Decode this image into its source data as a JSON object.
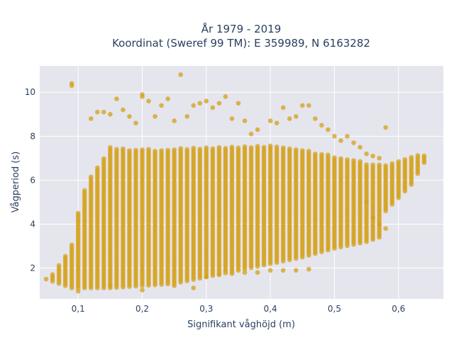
{
  "chart_data": {
    "type": "scatter",
    "title": "År 1979 - 2019",
    "subtitle": "Koordinat (Sweref 99 TM): E 359989, N 6163282",
    "xlabel": "Signifikant våghöjd (m)",
    "ylabel": "Vågperiod (s)",
    "xlim": [
      0.04,
      0.67
    ],
    "ylim": [
      0.6,
      11.2
    ],
    "x_ticks": [
      0.1,
      0.2,
      0.3,
      0.4,
      0.5,
      0.6
    ],
    "x_tick_labels": [
      "0,1",
      "0,2",
      "0,3",
      "0,4",
      "0,5",
      "0,6"
    ],
    "y_ticks": [
      2,
      4,
      6,
      8,
      10
    ],
    "y_tick_labels": [
      "2",
      "4",
      "6",
      "8",
      "10"
    ],
    "grid": true,
    "legend": "none",
    "marker_color": "#d4a017",
    "plot_background": "#e5e5ee",
    "x_resolution": 0.01,
    "band_lower": [
      [
        0.05,
        1.5
      ],
      [
        0.06,
        1.4
      ],
      [
        0.07,
        1.3
      ],
      [
        0.08,
        1.2
      ],
      [
        0.09,
        1.1
      ],
      [
        0.1,
        1.1
      ],
      [
        0.15,
        1.1
      ],
      [
        0.2,
        1.2
      ],
      [
        0.25,
        1.3
      ],
      [
        0.3,
        1.6
      ],
      [
        0.35,
        1.9
      ],
      [
        0.4,
        2.2
      ],
      [
        0.45,
        2.5
      ],
      [
        0.5,
        2.9
      ],
      [
        0.55,
        3.2
      ],
      [
        0.57,
        3.4
      ],
      [
        0.58,
        4.6
      ],
      [
        0.6,
        5.2
      ],
      [
        0.62,
        5.8
      ],
      [
        0.64,
        6.8
      ]
    ],
    "band_upper": [
      [
        0.05,
        1.6
      ],
      [
        0.06,
        1.8
      ],
      [
        0.07,
        2.2
      ],
      [
        0.08,
        2.6
      ],
      [
        0.09,
        3.1
      ],
      [
        0.1,
        4.6
      ],
      [
        0.11,
        5.6
      ],
      [
        0.12,
        6.2
      ],
      [
        0.15,
        7.5
      ],
      [
        0.2,
        7.4
      ],
      [
        0.3,
        7.5
      ],
      [
        0.4,
        7.6
      ],
      [
        0.45,
        7.4
      ],
      [
        0.5,
        7.1
      ],
      [
        0.55,
        6.8
      ],
      [
        0.58,
        6.7
      ],
      [
        0.6,
        6.9
      ],
      [
        0.62,
        7.1
      ],
      [
        0.64,
        7.2
      ]
    ],
    "sparse_points": [
      [
        0.09,
        10.3
      ],
      [
        0.09,
        10.4
      ],
      [
        0.26,
        10.8
      ],
      [
        0.12,
        8.8
      ],
      [
        0.13,
        9.1
      ],
      [
        0.14,
        9.1
      ],
      [
        0.15,
        9.0
      ],
      [
        0.16,
        9.7
      ],
      [
        0.17,
        9.2
      ],
      [
        0.18,
        8.9
      ],
      [
        0.19,
        8.6
      ],
      [
        0.2,
        9.8
      ],
      [
        0.2,
        9.9
      ],
      [
        0.21,
        9.6
      ],
      [
        0.22,
        8.9
      ],
      [
        0.23,
        9.4
      ],
      [
        0.24,
        9.7
      ],
      [
        0.25,
        8.7
      ],
      [
        0.27,
        8.9
      ],
      [
        0.28,
        9.4
      ],
      [
        0.29,
        9.5
      ],
      [
        0.3,
        9.6
      ],
      [
        0.31,
        9.3
      ],
      [
        0.32,
        9.5
      ],
      [
        0.33,
        9.8
      ],
      [
        0.34,
        8.8
      ],
      [
        0.35,
        9.5
      ],
      [
        0.36,
        8.7
      ],
      [
        0.37,
        8.1
      ],
      [
        0.38,
        8.3
      ],
      [
        0.4,
        8.7
      ],
      [
        0.41,
        8.6
      ],
      [
        0.42,
        9.3
      ],
      [
        0.43,
        8.8
      ],
      [
        0.44,
        8.9
      ],
      [
        0.45,
        9.4
      ],
      [
        0.46,
        9.4
      ],
      [
        0.47,
        8.8
      ],
      [
        0.48,
        8.5
      ],
      [
        0.49,
        8.3
      ],
      [
        0.5,
        8.0
      ],
      [
        0.51,
        7.8
      ],
      [
        0.52,
        8.0
      ],
      [
        0.53,
        7.7
      ],
      [
        0.54,
        7.5
      ],
      [
        0.55,
        7.2
      ],
      [
        0.56,
        7.1
      ],
      [
        0.57,
        7.0
      ],
      [
        0.58,
        8.4
      ],
      [
        0.1,
        0.95
      ],
      [
        0.15,
        1.2
      ],
      [
        0.2,
        1.0
      ],
      [
        0.25,
        1.2
      ],
      [
        0.28,
        1.1
      ],
      [
        0.3,
        1.6
      ],
      [
        0.32,
        1.7
      ],
      [
        0.34,
        1.75
      ],
      [
        0.36,
        1.8
      ],
      [
        0.38,
        1.8
      ],
      [
        0.4,
        1.9
      ],
      [
        0.42,
        1.9
      ],
      [
        0.44,
        1.9
      ],
      [
        0.46,
        1.95
      ],
      [
        0.55,
        5.0
      ],
      [
        0.56,
        4.3
      ],
      [
        0.57,
        4.0
      ],
      [
        0.58,
        3.8
      ]
    ]
  }
}
